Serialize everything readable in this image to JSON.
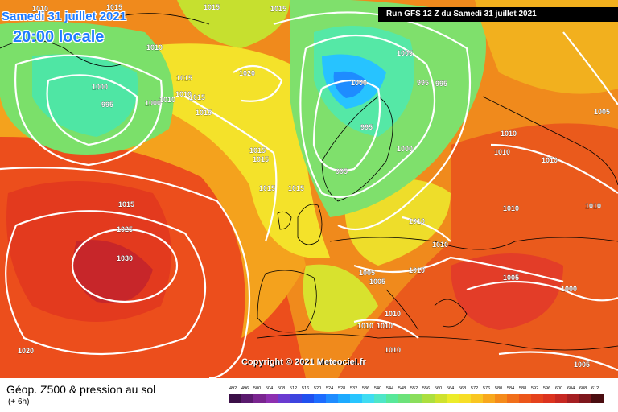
{
  "header": {
    "date": "Samedi 31 juillet 2021",
    "time": "20:00 locale",
    "run": "Run GFS 12 Z du Samedi 31 juillet 2021"
  },
  "copyright": "Copyright © 2021 Meteociel.fr",
  "footer": {
    "title": "Géop. Z500 & pression au sol",
    "subtitle": "(+ 6h)"
  },
  "isobar_labels": [
    "1010",
    "1015",
    "1015",
    "1015",
    "1010",
    "1010",
    "1015",
    "1015",
    "1000",
    "995",
    "1000",
    "1010",
    "1015",
    "1015",
    "1015",
    "1020",
    "1005",
    "1000",
    "995",
    "995",
    "995",
    "995",
    "1000",
    "1010",
    "1010",
    "1010",
    "1005",
    "1010",
    "1015",
    "1015",
    "1015",
    "1010",
    "1020",
    "1025",
    "1030",
    "1010",
    "1010",
    "1005",
    "1005",
    "1010",
    "1010",
    "1010",
    "1010",
    "1005",
    "1000",
    "1020",
    "1010",
    "1005"
  ],
  "legend": {
    "scale_labels": [
      "492",
      "496",
      "500",
      "504",
      "508",
      "512",
      "516",
      "520",
      "524",
      "528",
      "532",
      "536",
      "540",
      "544",
      "548",
      "552",
      "556",
      "560",
      "564",
      "568",
      "572",
      "576",
      "580",
      "584",
      "588",
      "592",
      "596",
      "600",
      "604",
      "608",
      "612"
    ],
    "scale_colors": [
      "#3b0f47",
      "#5a1a6e",
      "#7a2590",
      "#8d2fb0",
      "#6a3bd0",
      "#3d44df",
      "#2050ef",
      "#1d6cff",
      "#1f8cff",
      "#1daaff",
      "#28c5ff",
      "#3fdcf2",
      "#4ee6c8",
      "#57e89a",
      "#6ce27a",
      "#8ade5c",
      "#acdf3f",
      "#cfe22e",
      "#ecec2a",
      "#f7de27",
      "#f9c621",
      "#f8a81d",
      "#f58b1b",
      "#f16f1a",
      "#ec561a",
      "#e5421c",
      "#dc331f",
      "#c72822",
      "#a51f22",
      "#7e171d",
      "#4a0d10"
    ]
  }
}
